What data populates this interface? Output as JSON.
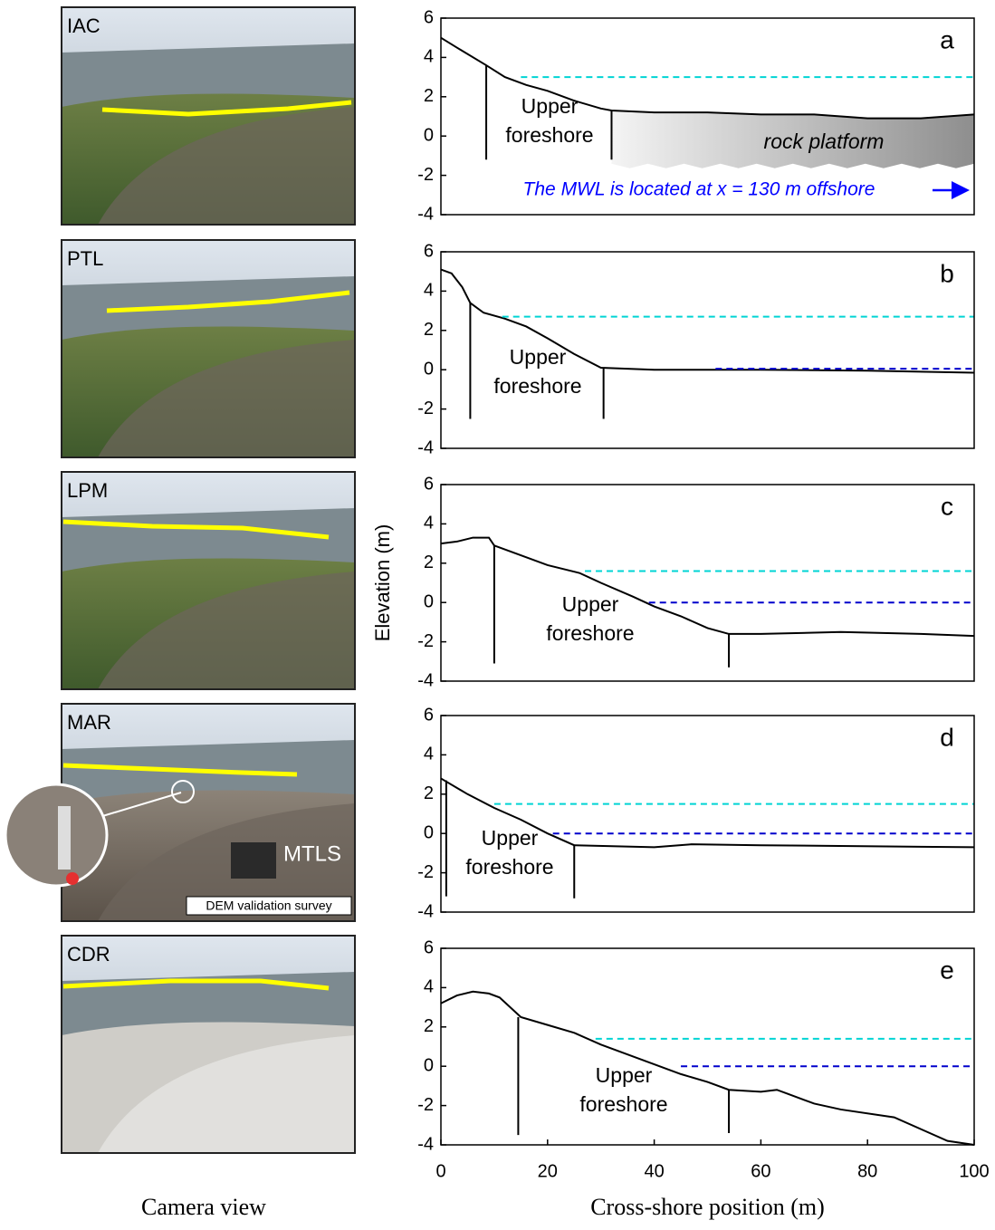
{
  "camera_caption": "Camera view",
  "chart_data": [
    {
      "type": "line",
      "label": "a",
      "site": "IAC",
      "xlim": [
        0,
        100
      ],
      "ylim": [
        -4,
        6
      ],
      "yticks": [
        -4,
        -2,
        0,
        2,
        4,
        6
      ],
      "zone_label": [
        "Upper",
        "foreshore"
      ],
      "platform_label": "rock platform",
      "note": "The MWL is located at x = 130 m offshore",
      "shaded": {
        "x": [
          32,
          100
        ],
        "base": -1.5
      },
      "series": [
        {
          "color": "#000000",
          "dash": false,
          "x": [
            0,
            3,
            8.5,
            12,
            16,
            20,
            25,
            30,
            32,
            40,
            50,
            60,
            70,
            80,
            90,
            100
          ],
          "values": [
            5,
            4.5,
            3.6,
            3.0,
            2.6,
            2.3,
            1.8,
            1.4,
            1.3,
            1.2,
            1.2,
            1.1,
            1.1,
            0.9,
            0.9,
            1.1
          ]
        },
        {
          "color": "#00d4d4",
          "dash": true,
          "x": [
            15,
            100
          ],
          "values": [
            3.0,
            3.0
          ]
        },
        {
          "color": "#000000",
          "dash": false,
          "x": [
            8.5,
            8.5
          ],
          "values": [
            -1.2,
            3.6
          ]
        },
        {
          "color": "#000000",
          "dash": false,
          "x": [
            32,
            32
          ],
          "values": [
            -1.2,
            1.3
          ]
        }
      ]
    },
    {
      "type": "line",
      "label": "b",
      "site": "PTL",
      "xlim": [
        0,
        100
      ],
      "ylim": [
        -4,
        6
      ],
      "yticks": [
        -4,
        -2,
        0,
        2,
        4,
        6
      ],
      "zone_label": [
        "Upper",
        "foreshore"
      ],
      "series": [
        {
          "color": "#000000",
          "dash": false,
          "x": [
            0,
            2,
            4,
            5.5,
            8,
            12,
            16,
            20,
            25,
            30,
            35,
            40,
            60,
            80,
            100
          ],
          "values": [
            5.1,
            4.9,
            4.2,
            3.4,
            2.9,
            2.6,
            2.2,
            1.6,
            0.8,
            0.1,
            0.05,
            0,
            0,
            -0.05,
            -0.15
          ]
        },
        {
          "color": "#00d4d4",
          "dash": true,
          "x": [
            11.5,
            100
          ],
          "values": [
            2.7,
            2.7
          ]
        },
        {
          "color": "#0000cc",
          "dash": true,
          "x": [
            51.5,
            100
          ],
          "values": [
            0.05,
            0.05
          ]
        },
        {
          "color": "#000000",
          "dash": false,
          "x": [
            5.5,
            5.5
          ],
          "values": [
            -2.5,
            3.4
          ]
        },
        {
          "color": "#000000",
          "dash": false,
          "x": [
            30.5,
            30.5
          ],
          "values": [
            -2.5,
            0.1
          ]
        }
      ]
    },
    {
      "type": "line",
      "label": "c",
      "site": "LPM",
      "xlim": [
        0,
        100
      ],
      "ylim": [
        -4,
        6
      ],
      "yticks": [
        -4,
        -2,
        0,
        2,
        4,
        6
      ],
      "ylabel": "Elevation (m)",
      "zone_label": [
        "Upper",
        "foreshore"
      ],
      "series": [
        {
          "color": "#000000",
          "dash": false,
          "x": [
            0,
            3,
            6,
            9,
            10,
            14,
            20,
            26,
            30,
            36,
            40,
            45,
            50,
            54,
            60,
            75,
            90,
            100
          ],
          "values": [
            3.0,
            3.1,
            3.3,
            3.3,
            2.9,
            2.5,
            1.9,
            1.5,
            1.0,
            0.3,
            -0.2,
            -0.7,
            -1.3,
            -1.6,
            -1.6,
            -1.5,
            -1.6,
            -1.7
          ]
        },
        {
          "color": "#00d4d4",
          "dash": true,
          "x": [
            27,
            100
          ],
          "values": [
            1.6,
            1.6
          ]
        },
        {
          "color": "#0000cc",
          "dash": true,
          "x": [
            39,
            100
          ],
          "values": [
            0,
            0
          ]
        },
        {
          "color": "#000000",
          "dash": false,
          "x": [
            10,
            10
          ],
          "values": [
            -3.1,
            2.9
          ]
        },
        {
          "color": "#000000",
          "dash": false,
          "x": [
            54,
            54
          ],
          "values": [
            -3.3,
            -1.6
          ]
        }
      ]
    },
    {
      "type": "line",
      "label": "d",
      "site": "MAR",
      "xlim": [
        0,
        100
      ],
      "ylim": [
        -4,
        6
      ],
      "yticks": [
        -4,
        -2,
        0,
        2,
        4,
        6
      ],
      "zone_label": [
        "Upper",
        "foreshore"
      ],
      "photo_labels": [
        "MTLS",
        "DEM validation survey"
      ],
      "series": [
        {
          "color": "#000000",
          "dash": false,
          "x": [
            0,
            5,
            10,
            15,
            20,
            25,
            40,
            47,
            60,
            100
          ],
          "values": [
            2.8,
            2.0,
            1.3,
            0.7,
            0.0,
            -0.6,
            -0.7,
            -0.55,
            -0.6,
            -0.7
          ]
        },
        {
          "color": "#00d4d4",
          "dash": true,
          "x": [
            10,
            100
          ],
          "values": [
            1.5,
            1.5
          ]
        },
        {
          "color": "#0000cc",
          "dash": true,
          "x": [
            21,
            100
          ],
          "values": [
            0,
            0
          ]
        },
        {
          "color": "#000000",
          "dash": false,
          "x": [
            1,
            1
          ],
          "values": [
            -3.2,
            2.7
          ]
        },
        {
          "color": "#000000",
          "dash": false,
          "x": [
            25,
            25
          ],
          "values": [
            -3.3,
            -0.6
          ]
        }
      ]
    },
    {
      "type": "line",
      "label": "e",
      "site": "CDR",
      "xlim": [
        0,
        100
      ],
      "ylim": [
        -4,
        6
      ],
      "yticks": [
        -4,
        -2,
        0,
        2,
        4,
        6
      ],
      "xticks": [
        0,
        20,
        40,
        60,
        80,
        100
      ],
      "xlabel": "Cross-shore position (m)",
      "zone_label": [
        "Upper",
        "foreshore"
      ],
      "series": [
        {
          "color": "#000000",
          "dash": false,
          "x": [
            0,
            3,
            6,
            9,
            11,
            15,
            20,
            25,
            30,
            35,
            40,
            45,
            50,
            54,
            60,
            63,
            65,
            70,
            75,
            85,
            90,
            95,
            100
          ],
          "values": [
            3.2,
            3.6,
            3.8,
            3.7,
            3.5,
            2.5,
            2.1,
            1.7,
            1.1,
            0.6,
            0.1,
            -0.4,
            -0.8,
            -1.2,
            -1.3,
            -1.2,
            -1.4,
            -1.9,
            -2.2,
            -2.6,
            -3.2,
            -3.8,
            -4.0
          ]
        },
        {
          "color": "#00d4d4",
          "dash": true,
          "x": [
            29,
            100
          ],
          "values": [
            1.4,
            1.4
          ]
        },
        {
          "color": "#0000cc",
          "dash": true,
          "x": [
            45,
            100
          ],
          "values": [
            0,
            0
          ]
        },
        {
          "color": "#000000",
          "dash": false,
          "x": [
            14.5,
            14.5
          ],
          "values": [
            -3.5,
            2.5
          ]
        },
        {
          "color": "#000000",
          "dash": false,
          "x": [
            54,
            54
          ],
          "values": [
            -3.4,
            -1.2
          ]
        }
      ]
    }
  ]
}
